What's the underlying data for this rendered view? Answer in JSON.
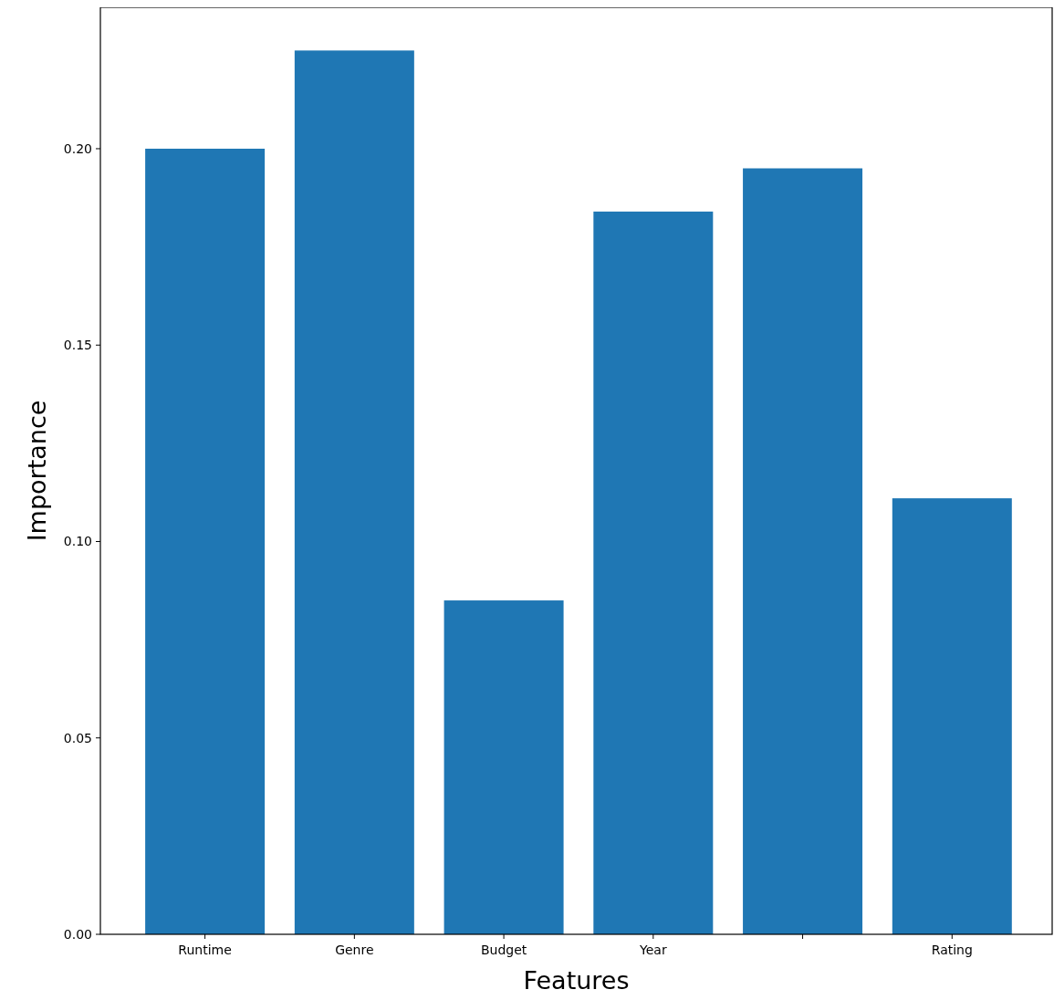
{
  "chart_data": {
    "type": "bar",
    "xlabel": "Features",
    "ylabel": "Importance",
    "categories": [
      "Runtime",
      "Genre",
      "Budget",
      "Year",
      null,
      "Rating"
    ],
    "values": [
      0.2,
      0.225,
      0.085,
      0.184,
      0.195,
      0.111
    ],
    "color": "#1f77b4",
    "ylim": [
      0,
      0.236
    ],
    "yticks": [
      {
        "value": 0,
        "label": "0.00"
      },
      {
        "value": 0.05,
        "label": "0.05"
      },
      {
        "value": 0.1,
        "label": "0.10"
      },
      {
        "value": 0.15,
        "label": "0.15"
      },
      {
        "value": 0.2,
        "label": "0.20"
      }
    ],
    "grid": false
  }
}
